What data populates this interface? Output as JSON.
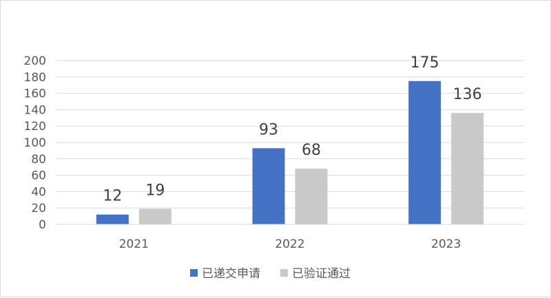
{
  "chart_data": {
    "type": "bar",
    "categories": [
      "2021",
      "2022",
      "2023"
    ],
    "series": [
      {
        "name": "已递交申请",
        "values": [
          12,
          93,
          175
        ],
        "color": "#4472c4"
      },
      {
        "name": "已验证通过",
        "values": [
          19,
          68,
          136
        ],
        "color": "#c9c9c9"
      }
    ],
    "ylim": [
      0,
      200
    ],
    "yticks": [
      "0",
      "20",
      "40",
      "60",
      "80",
      "100",
      "120",
      "140",
      "160",
      "180",
      "200"
    ],
    "grid": true,
    "legend": "bottom"
  }
}
